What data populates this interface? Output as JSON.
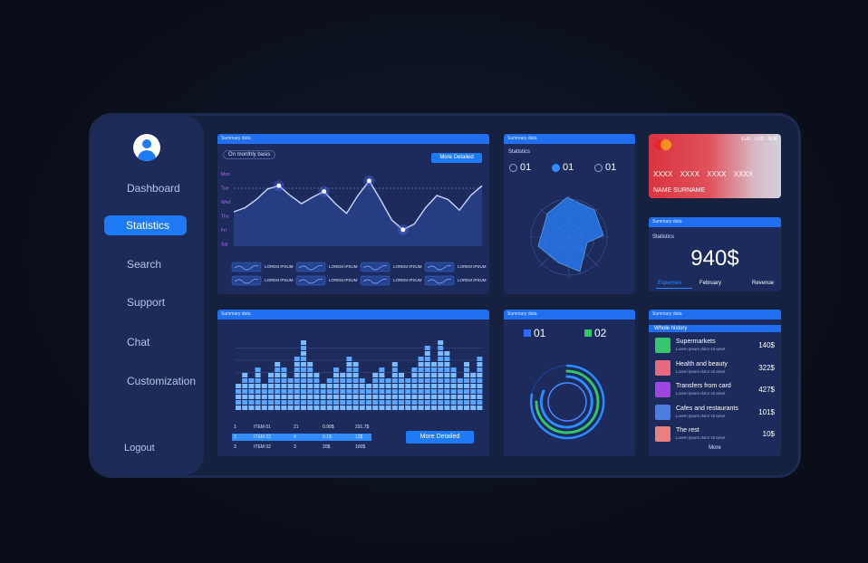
{
  "sidebar": {
    "items": [
      "Dashboard",
      "Statistics",
      "Search",
      "Support",
      "Chat",
      "Customization"
    ],
    "logout": "Logout"
  },
  "line_panel": {
    "header": "Summary data",
    "filter": "On monthly basis",
    "button": "More Detailed",
    "days": [
      "Mon",
      "Tue",
      "Wed",
      "Thu",
      "Fri",
      "Sat"
    ],
    "values": [
      40,
      45,
      55,
      68,
      72,
      60,
      50,
      58,
      65,
      50,
      38,
      60,
      78,
      55,
      30,
      18,
      25,
      45,
      60,
      55,
      42,
      60,
      72
    ],
    "legend": [
      "LOREM IPSUM",
      "LOREM IPSUM",
      "LOREM IPSUM",
      "LOREM IPSUM",
      "LOREM IPSUM",
      "LOREM IPSUM",
      "LOREM IPSUM",
      "LOREM IPSUM"
    ]
  },
  "radar_panel": {
    "header": "Summary data",
    "title": "Statistics",
    "items": [
      "01",
      "01",
      "01"
    ]
  },
  "card": {
    "currencies": [
      "EUR",
      "USD",
      "RUB"
    ],
    "number": "XXXX XXXX XXXX XXXX",
    "name": "NAME SURNAME"
  },
  "stats_panel": {
    "header": "Summary data",
    "title": "Statistics",
    "amount": "940$",
    "tabs": [
      "Expenses",
      "February",
      "Revenue"
    ]
  },
  "bar_panel": {
    "header": "Summary data",
    "values": [
      5,
      7,
      6,
      8,
      5,
      7,
      9,
      8,
      6,
      10,
      13,
      9,
      7,
      5,
      6,
      8,
      7,
      10,
      9,
      6,
      5,
      7,
      8,
      6,
      9,
      7,
      6,
      8,
      10,
      12,
      9,
      13,
      11,
      8,
      6,
      9,
      7,
      10
    ],
    "table": [
      [
        "1",
        "ITEM 01",
        "21",
        "0.99$",
        "231.7$"
      ],
      [
        "2",
        "ITEM 02",
        "4",
        "0.1$",
        "12$"
      ],
      [
        "3",
        "ITEM 02",
        "3",
        "20$",
        "100$"
      ]
    ],
    "button": "More Detailed"
  },
  "ring_panel": {
    "header": "Summary data",
    "items": [
      "01",
      "02"
    ]
  },
  "history_panel": {
    "header": "Summary data",
    "title": "Whole history",
    "rows": [
      {
        "name": "Supermarkets",
        "note": "Lorem ipsum dolor sit amet",
        "amount": "140$"
      },
      {
        "name": "Health and beauty",
        "note": "Lorem ipsum dolor sit amet",
        "amount": "322$"
      },
      {
        "name": "Transfers from card",
        "note": "Lorem ipsum dolor sit amet",
        "amount": "427$"
      },
      {
        "name": "Cafes and restaurants",
        "note": "Lorem ipsum dolor sit amet",
        "amount": "101$"
      },
      {
        "name": "The rest",
        "note": "Lorem ipsum dolor sit amet",
        "amount": "10$"
      }
    ],
    "more": "More"
  }
}
